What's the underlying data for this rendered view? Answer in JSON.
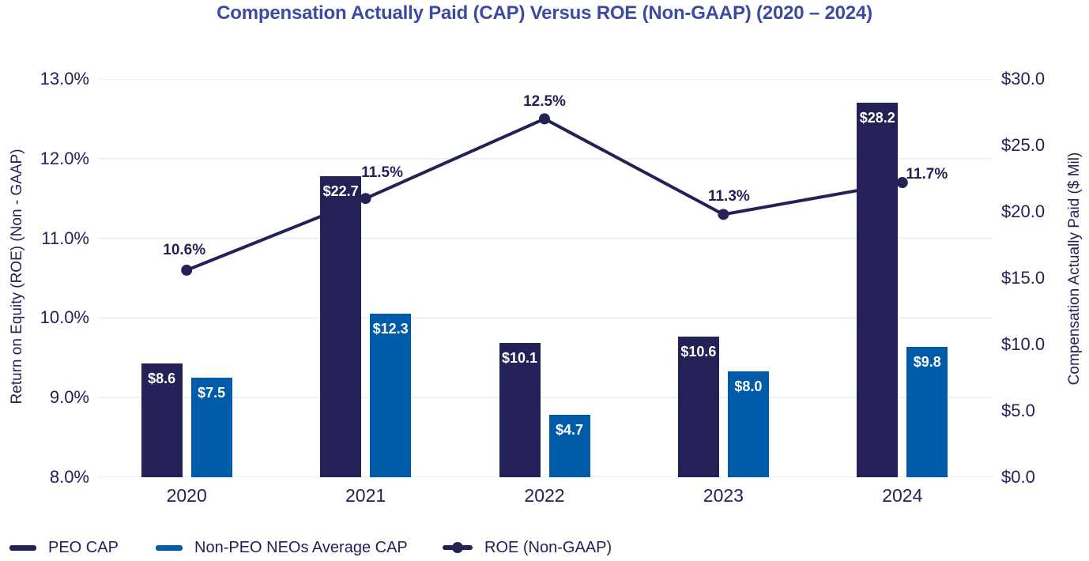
{
  "title": "Compensation Actually Paid (CAP) Versus ROE (Non-GAAP) (2020 – 2024)",
  "chart_data": {
    "type": "combo-bar-line",
    "categories": [
      "2020",
      "2021",
      "2022",
      "2023",
      "2024"
    ],
    "series": [
      {
        "name": "PEO CAP",
        "type": "bar",
        "axis": "right",
        "color": "#242157",
        "values": [
          8.6,
          22.7,
          10.1,
          10.6,
          28.2
        ],
        "labels": [
          "$8.6",
          "$22.7",
          "$10.1",
          "$10.6",
          "$28.2"
        ]
      },
      {
        "name": "Non-PEO NEOs Average CAP",
        "type": "bar",
        "axis": "right",
        "color": "#005CA8",
        "values": [
          7.5,
          12.3,
          4.7,
          8.0,
          9.8
        ],
        "labels": [
          "$7.5",
          "$12.3",
          "$4.7",
          "$8.0",
          "$9.8"
        ]
      },
      {
        "name": "ROE (Non-GAAP)",
        "type": "line",
        "axis": "left",
        "color": "#242157",
        "values": [
          10.6,
          11.5,
          12.5,
          11.3,
          11.7
        ],
        "labels": [
          "10.6%",
          "11.5%",
          "12.5%",
          "11.3%",
          "11.7%"
        ]
      }
    ],
    "left_axis": {
      "title": "Return on Equity (ROE) (Non - GAAP)",
      "min": 8.0,
      "max": 13.0,
      "ticks": [
        "13.0%",
        "12.0%",
        "11.0%",
        "10.0%",
        "9.0%",
        "8.0%"
      ]
    },
    "right_axis": {
      "title": "Compensation Actually Paid ($ Mil)",
      "min": 0.0,
      "max": 30.0,
      "ticks": [
        "$30.0",
        "$25.0",
        "$20.0",
        "$15.0",
        "$10.0",
        "$5.0",
        "$0.0"
      ]
    },
    "grid": true,
    "legend_position": "bottom-left",
    "colors": {
      "title": "#3B4BA3",
      "axis_text": "#242157",
      "gridline": "#E9F2FA",
      "bar_label": "#FFFFFF"
    }
  }
}
